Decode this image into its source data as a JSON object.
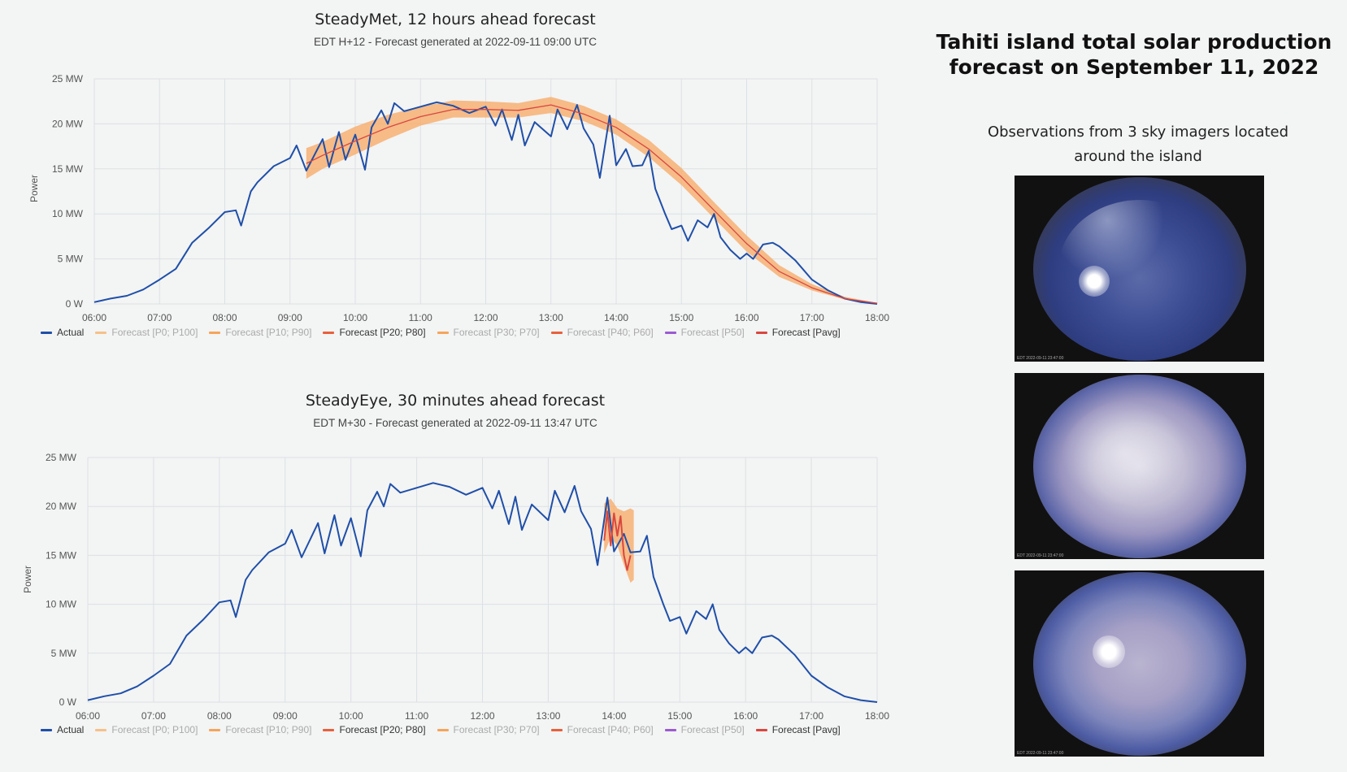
{
  "chart_data": [
    {
      "type": "line",
      "title": "SteadyMet, 12 hours ahead forecast",
      "subtitle": "EDT H+12 - Forecast generated at 2022-09-11 09:00 UTC",
      "ylabel": "Power",
      "xlabel": "",
      "ylim": [
        0,
        25
      ],
      "xlim": [
        6,
        18
      ],
      "x_ticks": [
        "06:00",
        "07:00",
        "08:00",
        "09:00",
        "10:00",
        "11:00",
        "12:00",
        "13:00",
        "14:00",
        "15:00",
        "16:00",
        "17:00",
        "18:00"
      ],
      "y_ticks": [
        "0 W",
        "5 MW",
        "10 MW",
        "15 MW",
        "20 MW",
        "25 MW"
      ],
      "grid": true,
      "legend_position": "bottom",
      "series": [
        {
          "name": "Actual",
          "color": "#1f4fa8",
          "x": [
            6.0,
            6.25,
            6.5,
            6.75,
            7.0,
            7.25,
            7.5,
            7.75,
            8.0,
            8.17,
            8.25,
            8.4,
            8.5,
            8.75,
            9.0,
            9.1,
            9.25,
            9.5,
            9.6,
            9.75,
            9.85,
            10.0,
            10.15,
            10.25,
            10.4,
            10.5,
            10.6,
            10.75,
            11.0,
            11.25,
            11.5,
            11.75,
            12.0,
            12.15,
            12.25,
            12.4,
            12.5,
            12.6,
            12.75,
            13.0,
            13.1,
            13.25,
            13.4,
            13.5,
            13.65,
            13.75,
            13.9,
            14.0,
            14.15,
            14.25,
            14.4,
            14.5,
            14.6,
            14.75,
            14.85,
            15.0,
            15.1,
            15.25,
            15.4,
            15.5,
            15.6,
            15.75,
            15.9,
            16.0,
            16.1,
            16.25,
            16.4,
            16.5,
            16.75,
            17.0,
            17.25,
            17.5,
            17.75,
            18.0
          ],
          "y": [
            0.2,
            0.6,
            0.9,
            1.6,
            2.7,
            3.9,
            6.8,
            8.4,
            10.2,
            10.4,
            8.7,
            12.5,
            13.5,
            15.3,
            16.2,
            17.6,
            14.8,
            18.3,
            15.2,
            19.1,
            16.0,
            18.8,
            14.9,
            19.6,
            21.5,
            20.0,
            22.3,
            21.4,
            21.9,
            22.4,
            22.0,
            21.2,
            21.9,
            19.8,
            21.6,
            18.2,
            21.0,
            17.6,
            20.2,
            18.6,
            21.6,
            19.4,
            22.1,
            19.5,
            17.7,
            14.0,
            20.9,
            15.4,
            17.2,
            15.3,
            15.4,
            17.0,
            12.8,
            10.0,
            8.3,
            8.7,
            7.0,
            9.3,
            8.5,
            10.0,
            7.4,
            6.0,
            5.0,
            5.6,
            5.0,
            6.6,
            6.8,
            6.4,
            4.8,
            2.7,
            1.5,
            0.6,
            0.2,
            0.0
          ]
        },
        {
          "name": "Forecast [P0; P100]",
          "color": "#f6c08a"
        },
        {
          "name": "Forecast [P10; P90]",
          "color": "#f5a55a"
        },
        {
          "name": "Forecast [P20; P80]",
          "color": "#f6ad6c",
          "x": [
            9.25,
            9.5,
            10.0,
            10.5,
            11.0,
            11.5,
            12.0,
            12.5,
            13.0,
            13.5,
            14.0,
            14.5,
            15.0,
            15.5,
            16.0,
            16.5,
            17.0,
            17.5,
            18.0
          ],
          "low": [
            13.9,
            15.0,
            16.6,
            18.3,
            19.8,
            20.7,
            20.7,
            20.7,
            21.2,
            20.3,
            18.8,
            16.3,
            13.2,
            9.5,
            5.8,
            3.0,
            1.5,
            0.5,
            0.05
          ],
          "high": [
            17.3,
            18.0,
            19.7,
            21.0,
            21.9,
            22.6,
            22.5,
            22.3,
            23.0,
            22.0,
            20.5,
            18.2,
            15.1,
            11.3,
            7.6,
            4.3,
            2.2,
            0.8,
            0.1
          ]
        },
        {
          "name": "Forecast [P30; P70]",
          "color": "#f5a55a"
        },
        {
          "name": "Forecast [P40; P60]",
          "color": "#e8603c"
        },
        {
          "name": "Forecast [P50]",
          "color": "#9b5bd1"
        },
        {
          "name": "Forecast [Pavg]",
          "color": "#d9473f",
          "x": [
            9.25,
            9.5,
            10.0,
            10.5,
            11.0,
            11.5,
            12.0,
            12.5,
            13.0,
            13.5,
            14.0,
            14.5,
            15.0,
            15.5,
            16.0,
            16.5,
            17.0,
            17.5,
            18.0
          ],
          "y": [
            15.6,
            16.5,
            18.1,
            19.6,
            20.8,
            21.6,
            21.6,
            21.5,
            22.1,
            21.1,
            19.6,
            17.2,
            14.1,
            10.4,
            6.7,
            3.6,
            1.8,
            0.6,
            0.07
          ]
        }
      ]
    },
    {
      "type": "line",
      "title": "SteadyEye, 30 minutes ahead forecast",
      "subtitle": "EDT M+30 - Forecast generated at 2022-09-11 13:47 UTC",
      "ylabel": "Power",
      "xlabel": "",
      "ylim": [
        0,
        25
      ],
      "xlim": [
        6,
        18
      ],
      "x_ticks": [
        "06:00",
        "07:00",
        "08:00",
        "09:00",
        "10:00",
        "11:00",
        "12:00",
        "13:00",
        "14:00",
        "15:00",
        "16:00",
        "17:00",
        "18:00"
      ],
      "y_ticks": [
        "0 W",
        "5 MW",
        "10 MW",
        "15 MW",
        "20 MW",
        "25 MW"
      ],
      "grid": true,
      "legend_position": "bottom",
      "series": [
        {
          "name": "Actual",
          "color": "#1f4fa8",
          "x": [
            6.0,
            6.25,
            6.5,
            6.75,
            7.0,
            7.25,
            7.5,
            7.75,
            8.0,
            8.17,
            8.25,
            8.4,
            8.5,
            8.75,
            9.0,
            9.1,
            9.25,
            9.5,
            9.6,
            9.75,
            9.85,
            10.0,
            10.15,
            10.25,
            10.4,
            10.5,
            10.6,
            10.75,
            11.0,
            11.25,
            11.5,
            11.75,
            12.0,
            12.15,
            12.25,
            12.4,
            12.5,
            12.6,
            12.75,
            13.0,
            13.1,
            13.25,
            13.4,
            13.5,
            13.65,
            13.75,
            13.9,
            14.0,
            14.15,
            14.25,
            14.4,
            14.5,
            14.6,
            14.75,
            14.85,
            15.0,
            15.1,
            15.25,
            15.4,
            15.5,
            15.6,
            15.75,
            15.9,
            16.0,
            16.1,
            16.25,
            16.4,
            16.5,
            16.75,
            17.0,
            17.25,
            17.5,
            17.75,
            18.0
          ],
          "y": [
            0.2,
            0.6,
            0.9,
            1.6,
            2.7,
            3.9,
            6.8,
            8.4,
            10.2,
            10.4,
            8.7,
            12.5,
            13.5,
            15.3,
            16.2,
            17.6,
            14.8,
            18.3,
            15.2,
            19.1,
            16.0,
            18.8,
            14.9,
            19.6,
            21.5,
            20.0,
            22.3,
            21.4,
            21.9,
            22.4,
            22.0,
            21.2,
            21.9,
            19.8,
            21.6,
            18.2,
            21.0,
            17.6,
            20.2,
            18.6,
            21.6,
            19.4,
            22.1,
            19.5,
            17.7,
            14.0,
            20.9,
            15.4,
            17.2,
            15.3,
            15.4,
            17.0,
            12.8,
            10.0,
            8.3,
            8.7,
            7.0,
            9.3,
            8.5,
            10.0,
            7.4,
            6.0,
            5.0,
            5.6,
            5.0,
            6.6,
            6.8,
            6.4,
            4.8,
            2.7,
            1.5,
            0.6,
            0.2,
            0.0
          ]
        },
        {
          "name": "Forecast [P0; P100]",
          "color": "#f6c08a"
        },
        {
          "name": "Forecast [P10; P90]",
          "color": "#f5a55a"
        },
        {
          "name": "Forecast [P20; P80]",
          "color": "#f6ad6c",
          "x": [
            13.85,
            13.95,
            14.05,
            14.15,
            14.25,
            14.3
          ],
          "low": [
            15.2,
            16.8,
            16.0,
            14.0,
            12.2,
            12.5
          ],
          "high": [
            20.3,
            20.8,
            19.8,
            19.5,
            19.8,
            19.6
          ]
        },
        {
          "name": "Forecast [P30; P70]",
          "color": "#f5a55a"
        },
        {
          "name": "Forecast [P40; P60]",
          "color": "#e8603c"
        },
        {
          "name": "Forecast [P50]",
          "color": "#9b5bd1"
        },
        {
          "name": "Forecast [Pavg]",
          "color": "#d9473f",
          "x": [
            13.85,
            13.9,
            13.95,
            14.0,
            14.05,
            14.1,
            14.15,
            14.2,
            14.25
          ],
          "y": [
            16.5,
            19.5,
            16.0,
            19.3,
            17.0,
            19.0,
            15.0,
            13.5,
            15.0
          ]
        }
      ]
    }
  ],
  "legend": {
    "items": [
      "Actual",
      "Forecast [P0; P100]",
      "Forecast [P10; P90]",
      "Forecast [P20; P80]",
      "Forecast [P30; P70]",
      "Forecast [P40; P60]",
      "Forecast [P50]",
      "Forecast [Pavg]"
    ],
    "active": [
      true,
      false,
      false,
      true,
      false,
      false,
      false,
      true
    ],
    "colors": [
      "#1f4fa8",
      "#f6c08a",
      "#f5a55a",
      "#e8603c",
      "#f5a55a",
      "#e8603c",
      "#9b5bd1",
      "#d9473f"
    ]
  },
  "panel": {
    "title": "Tahiti island total solar production forecast on September 11, 2022",
    "subtitle": "Observations from 3 sky imagers located around the island",
    "images": [
      {
        "icon": "sky-imager-clear-sky-photo",
        "caption": "EDT 2022-09-11 23:47:00"
      },
      {
        "icon": "sky-imager-cloudy-sky-photo",
        "caption": "EDT 2022-09-11 23:47:00"
      },
      {
        "icon": "sky-imager-partly-cloudy-sky-photo",
        "caption": "EDT 2022-09-11 23:47:00"
      }
    ]
  }
}
